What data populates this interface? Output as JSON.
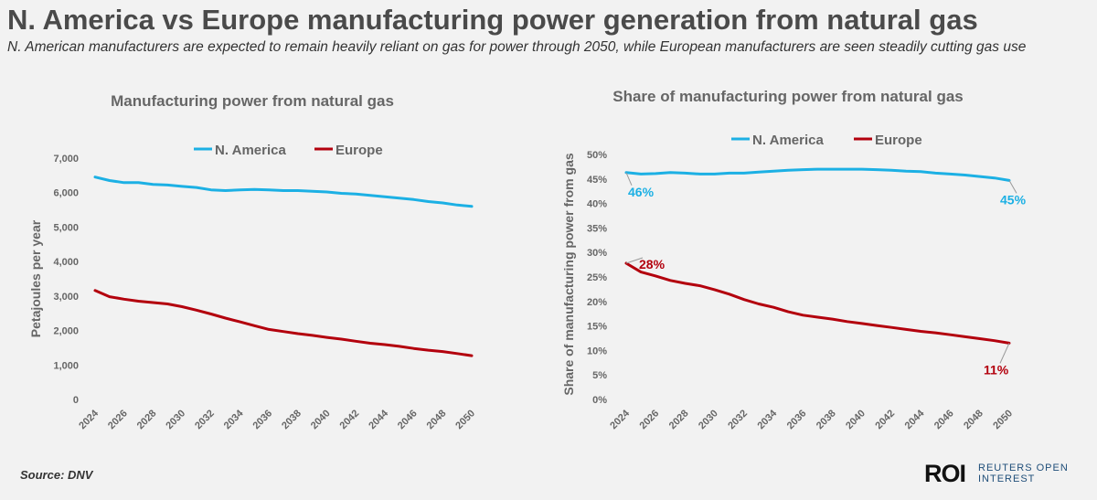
{
  "headline": "N. America vs Europe manufacturing power generation from natural gas",
  "subheadline": "N. American manufacturers are expected to remain heavily reliant on gas for power through 2050, while European manufacturers are seen steadily cutting gas use",
  "source": "Source:  DNV",
  "logo": {
    "mark": "ROI",
    "line1": "REUTERS OPEN",
    "line2": "INTEREST"
  },
  "colors": {
    "n_america": "#1cb0e4",
    "europe": "#b3000d"
  },
  "chart_data": [
    {
      "type": "line",
      "title": "Manufacturing power from natural gas",
      "xlabel": "",
      "ylabel": "Petajoules per year",
      "x": [
        2024,
        2025,
        2026,
        2027,
        2028,
        2029,
        2030,
        2031,
        2032,
        2033,
        2034,
        2035,
        2036,
        2037,
        2038,
        2039,
        2040,
        2041,
        2042,
        2043,
        2044,
        2045,
        2046,
        2047,
        2048,
        2049,
        2050
      ],
      "x_tick_labels": [
        "2024",
        "2026",
        "2028",
        "2030",
        "2032",
        "2034",
        "2036",
        "2038",
        "2040",
        "2042",
        "2044",
        "2046",
        "2048",
        "2050"
      ],
      "y_tick_labels": [
        "0",
        "1,000",
        "2,000",
        "3,000",
        "4,000",
        "5,000",
        "6,000",
        "7,000"
      ],
      "ylim": [
        0,
        7000
      ],
      "grid": false,
      "legend_position": "top",
      "series": [
        {
          "name": "N. America",
          "values": [
            6450,
            6350,
            6290,
            6290,
            6240,
            6220,
            6180,
            6150,
            6080,
            6060,
            6080,
            6090,
            6080,
            6060,
            6060,
            6040,
            6020,
            5980,
            5960,
            5920,
            5880,
            5840,
            5800,
            5740,
            5700,
            5640,
            5600
          ]
        },
        {
          "name": "Europe",
          "values": [
            3160,
            2980,
            2910,
            2850,
            2810,
            2770,
            2690,
            2590,
            2480,
            2360,
            2250,
            2140,
            2030,
            1970,
            1910,
            1860,
            1800,
            1750,
            1690,
            1630,
            1590,
            1540,
            1480,
            1430,
            1390,
            1330,
            1270
          ]
        }
      ]
    },
    {
      "type": "line",
      "title": "Share of manufacturing power from natural gas",
      "xlabel": "",
      "ylabel": "Share of manufacturing power from gas",
      "x": [
        2024,
        2025,
        2026,
        2027,
        2028,
        2029,
        2030,
        2031,
        2032,
        2033,
        2034,
        2035,
        2036,
        2037,
        2038,
        2039,
        2040,
        2041,
        2042,
        2043,
        2044,
        2045,
        2046,
        2047,
        2048,
        2049,
        2050
      ],
      "x_tick_labels": [
        "2024",
        "2026",
        "2028",
        "2030",
        "2032",
        "2034",
        "2036",
        "2038",
        "2040",
        "2042",
        "2044",
        "2046",
        "2048",
        "2050"
      ],
      "y_tick_labels": [
        "0%",
        "5%",
        "10%",
        "15%",
        "20%",
        "25%",
        "30%",
        "35%",
        "40%",
        "45%",
        "50%"
      ],
      "ylim": [
        0,
        50
      ],
      "grid": false,
      "legend_position": "top",
      "series": [
        {
          "name": "N. America",
          "values": [
            46.3,
            46.0,
            46.1,
            46.3,
            46.2,
            46.0,
            46.0,
            46.2,
            46.2,
            46.4,
            46.6,
            46.8,
            46.9,
            47.0,
            47.0,
            47.0,
            47.0,
            46.9,
            46.8,
            46.6,
            46.5,
            46.2,
            46.0,
            45.8,
            45.5,
            45.2,
            44.7
          ]
        },
        {
          "name": "Europe",
          "values": [
            27.8,
            26.0,
            25.2,
            24.3,
            23.7,
            23.2,
            22.4,
            21.5,
            20.4,
            19.5,
            18.8,
            17.9,
            17.2,
            16.8,
            16.4,
            15.9,
            15.5,
            15.1,
            14.7,
            14.3,
            13.9,
            13.6,
            13.2,
            12.8,
            12.4,
            12.0,
            11.5
          ]
        }
      ],
      "annotations": [
        {
          "text": "46%",
          "series": "N. America",
          "x": 2024
        },
        {
          "text": "45%",
          "series": "N. America",
          "x": 2050
        },
        {
          "text": "28%",
          "series": "Europe",
          "x": 2024
        },
        {
          "text": "11%",
          "series": "Europe",
          "x": 2050
        }
      ]
    }
  ]
}
